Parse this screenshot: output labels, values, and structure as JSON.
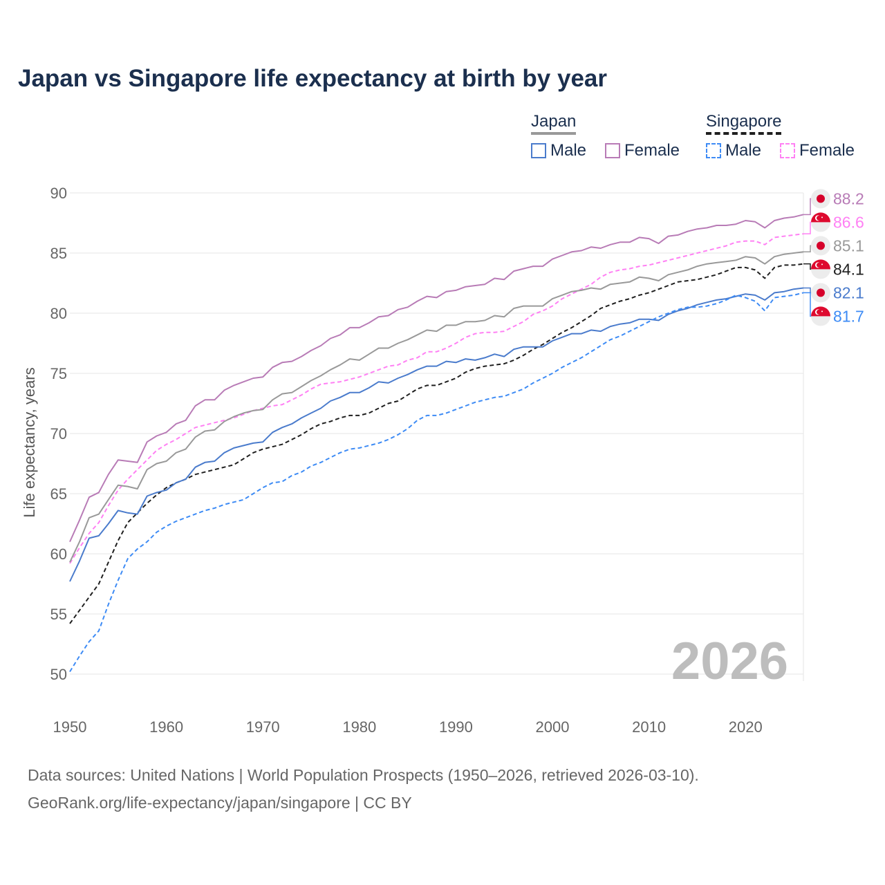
{
  "title": "Japan vs Singapore life expectancy at birth by year",
  "legend": {
    "japan": {
      "label": "Japan",
      "male": "Male",
      "female": "Female"
    },
    "singapore": {
      "label": "Singapore",
      "male": "Male",
      "female": "Female"
    }
  },
  "source_line1": "Data sources: United Nations | World Population Prospects (1950–2026, retrieved 2026-03-10).",
  "source_line2": "GeoRank.org/life-expectancy/japan/singapore | CC BY",
  "chart_data": {
    "type": "line",
    "title": "Japan vs Singapore life expectancy at birth by year",
    "xlabel": "",
    "ylabel": "Life expectancy, years",
    "x_range": [
      1950,
      2026
    ],
    "ylim": [
      50,
      90
    ],
    "yticks": [
      50,
      55,
      60,
      65,
      70,
      75,
      80,
      85,
      90
    ],
    "xticks": [
      1950,
      1960,
      1970,
      1980,
      1990,
      2000,
      2010,
      2020
    ],
    "grid": true,
    "legend_position": "top-right",
    "year_watermark": "2026",
    "series": [
      {
        "name": "Japan Female",
        "country": "japan",
        "color": "#b87bb6",
        "dashed": false,
        "end_label": "88.2",
        "values": [
          61.0,
          62.8,
          64.7,
          65.1,
          66.6,
          67.8,
          67.7,
          67.6,
          69.3,
          69.8,
          70.1,
          70.8,
          71.1,
          72.3,
          72.8,
          72.8,
          73.6,
          74.0,
          74.3,
          74.6,
          74.7,
          75.5,
          75.9,
          76.0,
          76.4,
          76.9,
          77.3,
          77.9,
          78.2,
          78.8,
          78.8,
          79.2,
          79.7,
          79.8,
          80.3,
          80.5,
          81.0,
          81.4,
          81.3,
          81.8,
          81.9,
          82.2,
          82.3,
          82.4,
          82.9,
          82.8,
          83.5,
          83.7,
          83.9,
          83.9,
          84.5,
          84.8,
          85.1,
          85.2,
          85.5,
          85.4,
          85.7,
          85.9,
          85.9,
          86.3,
          86.2,
          85.8,
          86.4,
          86.5,
          86.8,
          87.0,
          87.1,
          87.3,
          87.3,
          87.4,
          87.7,
          87.6,
          87.1,
          87.7,
          87.9,
          88.0,
          88.2
        ]
      },
      {
        "name": "Singapore Female",
        "country": "singapore",
        "color": "#ff80f4",
        "dashed": true,
        "end_label": "86.6",
        "values": [
          59.2,
          60.5,
          61.7,
          62.6,
          64.0,
          65.3,
          66.2,
          67.0,
          67.8,
          68.6,
          69.1,
          69.5,
          70.0,
          70.5,
          70.7,
          70.9,
          71.1,
          71.3,
          71.6,
          71.9,
          72.1,
          72.3,
          72.4,
          72.8,
          73.2,
          73.7,
          74.1,
          74.2,
          74.3,
          74.5,
          74.7,
          75.0,
          75.3,
          75.6,
          75.7,
          76.1,
          76.3,
          76.8,
          76.8,
          77.1,
          77.5,
          78.0,
          78.3,
          78.4,
          78.4,
          78.5,
          78.9,
          79.3,
          79.9,
          80.2,
          80.6,
          81.2,
          81.6,
          82.0,
          82.4,
          83.0,
          83.4,
          83.6,
          83.7,
          83.9,
          84.0,
          84.2,
          84.4,
          84.6,
          84.8,
          85.0,
          85.2,
          85.4,
          85.6,
          85.9,
          86.0,
          86.0,
          85.7,
          86.3,
          86.4,
          86.5,
          86.6
        ]
      },
      {
        "name": "Japan",
        "country": "japan",
        "color": "#999999",
        "dashed": false,
        "end_label": "85.1",
        "values": [
          59.3,
          61.0,
          63.0,
          63.3,
          64.5,
          65.7,
          65.6,
          65.4,
          67.0,
          67.5,
          67.7,
          68.4,
          68.7,
          69.7,
          70.2,
          70.3,
          71.0,
          71.4,
          71.7,
          71.9,
          72.0,
          72.8,
          73.3,
          73.4,
          73.9,
          74.4,
          74.8,
          75.3,
          75.7,
          76.2,
          76.1,
          76.6,
          77.1,
          77.1,
          77.5,
          77.8,
          78.2,
          78.6,
          78.5,
          79.0,
          79.0,
          79.3,
          79.3,
          79.4,
          79.8,
          79.7,
          80.4,
          80.6,
          80.6,
          80.6,
          81.2,
          81.5,
          81.8,
          81.9,
          82.1,
          82.0,
          82.4,
          82.5,
          82.6,
          83.0,
          82.9,
          82.7,
          83.2,
          83.4,
          83.6,
          83.9,
          84.1,
          84.2,
          84.3,
          84.4,
          84.7,
          84.6,
          84.1,
          84.7,
          84.9,
          85.0,
          85.1
        ]
      },
      {
        "name": "Singapore",
        "country": "singapore",
        "color": "#1f1f1f",
        "dashed": true,
        "end_label": "84.1",
        "values": [
          54.2,
          55.3,
          56.4,
          57.5,
          59.3,
          61.1,
          62.6,
          63.4,
          64.2,
          64.9,
          65.5,
          65.9,
          66.2,
          66.6,
          66.8,
          67.0,
          67.2,
          67.4,
          67.9,
          68.4,
          68.7,
          68.9,
          69.1,
          69.5,
          69.9,
          70.4,
          70.8,
          71.0,
          71.3,
          71.5,
          71.5,
          71.7,
          72.1,
          72.5,
          72.7,
          73.2,
          73.7,
          74.0,
          74.0,
          74.3,
          74.6,
          75.1,
          75.4,
          75.6,
          75.7,
          75.8,
          76.1,
          76.5,
          77.0,
          77.4,
          77.9,
          78.4,
          78.8,
          79.3,
          79.8,
          80.4,
          80.7,
          81.0,
          81.2,
          81.5,
          81.7,
          82.0,
          82.3,
          82.6,
          82.7,
          82.8,
          83.0,
          83.2,
          83.5,
          83.8,
          83.8,
          83.6,
          82.9,
          83.8,
          84.0,
          84.0,
          84.1
        ]
      },
      {
        "name": "Japan Male",
        "country": "japan",
        "color": "#4a7bcc",
        "dashed": false,
        "end_label": "82.1",
        "values": [
          57.7,
          59.4,
          61.3,
          61.5,
          62.5,
          63.6,
          63.4,
          63.3,
          64.8,
          65.1,
          65.3,
          65.9,
          66.2,
          67.2,
          67.6,
          67.7,
          68.4,
          68.8,
          69.0,
          69.2,
          69.3,
          70.1,
          70.5,
          70.8,
          71.3,
          71.7,
          72.1,
          72.7,
          73.0,
          73.4,
          73.4,
          73.8,
          74.3,
          74.2,
          74.6,
          74.9,
          75.3,
          75.6,
          75.6,
          76.0,
          75.9,
          76.2,
          76.1,
          76.3,
          76.6,
          76.4,
          77.0,
          77.2,
          77.2,
          77.2,
          77.7,
          78.0,
          78.3,
          78.3,
          78.6,
          78.5,
          78.9,
          79.1,
          79.2,
          79.5,
          79.5,
          79.4,
          79.9,
          80.2,
          80.4,
          80.7,
          80.9,
          81.1,
          81.2,
          81.4,
          81.6,
          81.5,
          81.1,
          81.7,
          81.8,
          82.0,
          82.1
        ]
      },
      {
        "name": "Singapore Male",
        "country": "singapore",
        "color": "#3d8bf5",
        "dashed": true,
        "end_label": "81.7",
        "values": [
          50.2,
          51.5,
          52.7,
          53.6,
          55.8,
          57.8,
          59.6,
          60.4,
          61.0,
          61.8,
          62.3,
          62.7,
          63.0,
          63.3,
          63.6,
          63.8,
          64.1,
          64.3,
          64.5,
          65.0,
          65.5,
          65.9,
          66.0,
          66.5,
          66.8,
          67.3,
          67.6,
          68.0,
          68.4,
          68.7,
          68.8,
          69.0,
          69.2,
          69.5,
          69.9,
          70.4,
          71.1,
          71.5,
          71.5,
          71.7,
          72.0,
          72.3,
          72.6,
          72.8,
          73.0,
          73.1,
          73.4,
          73.7,
          74.2,
          74.6,
          75.0,
          75.5,
          75.9,
          76.3,
          76.8,
          77.3,
          77.8,
          78.1,
          78.5,
          78.9,
          79.3,
          79.7,
          80.0,
          80.3,
          80.5,
          80.5,
          80.6,
          80.8,
          81.1,
          81.5,
          81.3,
          81.0,
          80.2,
          81.3,
          81.4,
          81.5,
          81.7
        ]
      }
    ]
  }
}
